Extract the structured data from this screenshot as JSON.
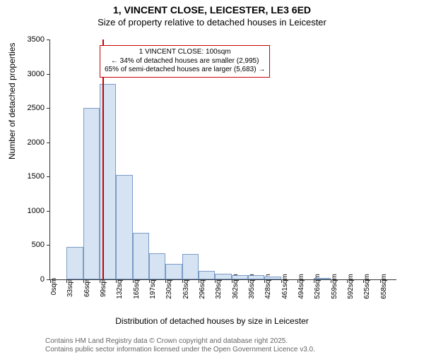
{
  "title": "1, VINCENT CLOSE, LEICESTER, LE3 6ED",
  "subtitle": "Size of property relative to detached houses in Leicester",
  "ylabel": "Number of detached properties",
  "xlabel": "Distribution of detached houses by size in Leicester",
  "chart": {
    "type": "histogram",
    "ylim": [
      0,
      3500
    ],
    "ytick_step": 500,
    "bar_fill": "#d6e3f3",
    "bar_stroke": "#7a9cc6",
    "background": "#ffffff",
    "xcategories": [
      "0sqm",
      "33sqm",
      "66sqm",
      "99sqm",
      "132sqm",
      "165sqm",
      "197sqm",
      "230sqm",
      "263sqm",
      "296sqm",
      "329sqm",
      "362sqm",
      "395sqm",
      "428sqm",
      "461sqm",
      "494sqm",
      "526sqm",
      "559sqm",
      "592sqm",
      "625sqm",
      "658sqm"
    ],
    "values": [
      0,
      470,
      2500,
      2850,
      1520,
      680,
      380,
      230,
      370,
      120,
      80,
      60,
      60,
      40,
      0,
      0,
      10,
      0,
      0,
      0
    ],
    "marker": {
      "position_sqm": 100,
      "color": "#cc0000"
    }
  },
  "annotation": {
    "line1": "1 VINCENT CLOSE: 100sqm",
    "line2": "← 34% of detached houses are smaller (2,995)",
    "line3": "65% of semi-detached houses are larger (5,683) →",
    "border_color": "#cc0000"
  },
  "footer": {
    "line1": "Contains HM Land Registry data © Crown copyright and database right 2025.",
    "line2": "Contains public sector information licensed under the Open Government Licence v3.0."
  }
}
